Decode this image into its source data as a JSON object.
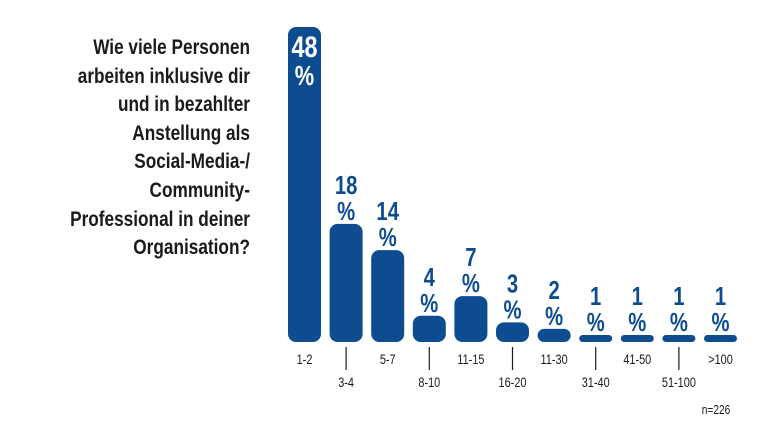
{
  "chart_data": {
    "type": "bar",
    "title": "Wie viele Personen\narbeiten inklusive dir\nund in bezahlter\nAnstellung als\nSocial-Media-/\nCommunity-\nProfessional in deiner\nOrganisation?",
    "categories": [
      "1-2",
      "3-4",
      "5-7",
      "8-10",
      "11-15",
      "16-20",
      "11-30",
      "31-40",
      "41-50",
      "51-100",
      ">100"
    ],
    "values": [
      48,
      18,
      14,
      4,
      7,
      3,
      2,
      1,
      1,
      1,
      1
    ],
    "unit": "%",
    "note": "n=226",
    "ylim": [
      0,
      48
    ],
    "grid": false,
    "colors": {
      "bar": "#0e4c92",
      "text": "#1a1a1a"
    }
  }
}
